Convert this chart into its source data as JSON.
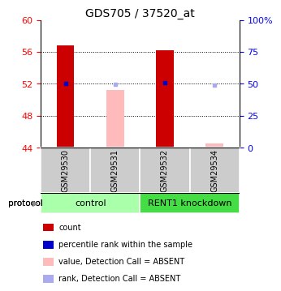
{
  "title": "GDS705 / 37520_at",
  "samples": [
    "GSM29530",
    "GSM29531",
    "GSM29532",
    "GSM29534"
  ],
  "group_defs": [
    {
      "name": "control",
      "indices": [
        0,
        1
      ],
      "color": "#aaffaa"
    },
    {
      "name": "RENT1 knockdown",
      "indices": [
        2,
        3
      ],
      "color": "#44dd44"
    }
  ],
  "ylim_left": [
    44,
    60
  ],
  "ylim_right": [
    0,
    100
  ],
  "yticks_left": [
    44,
    48,
    52,
    56,
    60
  ],
  "yticks_right": [
    0,
    25,
    50,
    75,
    100
  ],
  "ytick_labels_right": [
    "0",
    "25",
    "50",
    "75",
    "100%"
  ],
  "bar_values": [
    56.8,
    51.2,
    56.2,
    44.5
  ],
  "bar_colors": [
    "#cc0000",
    "#ffbbbb",
    "#cc0000",
    "#ffbbbb"
  ],
  "rank_values": [
    52.0,
    51.9,
    52.1,
    51.8
  ],
  "rank_colors": [
    "#0000cc",
    "#aaaaee",
    "#0000cc",
    "#aaaaee"
  ],
  "bar_width": 0.35,
  "dotted_yticks": [
    48,
    52,
    56
  ],
  "legend_items": [
    {
      "color": "#cc0000",
      "label": "count"
    },
    {
      "color": "#0000cc",
      "label": "percentile rank within the sample"
    },
    {
      "color": "#ffbbbb",
      "label": "value, Detection Call = ABSENT"
    },
    {
      "color": "#aaaaee",
      "label": "rank, Detection Call = ABSENT"
    }
  ],
  "tick_fontsize": 8,
  "title_fontsize": 10,
  "sample_fontsize": 7,
  "legend_fontsize": 7,
  "group_fontsize": 8
}
